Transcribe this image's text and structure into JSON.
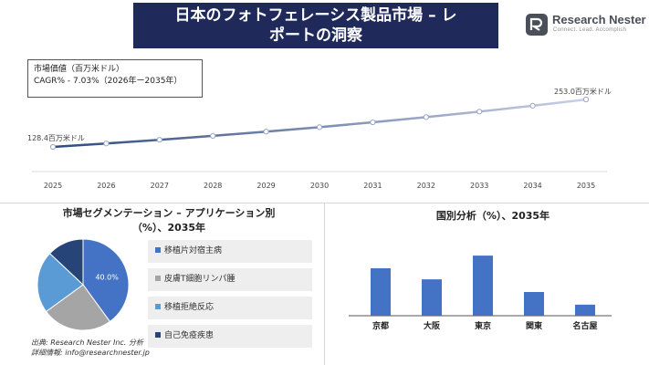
{
  "header": {
    "title_line1": "日本のフォトフェレーシス製品市場 – レ",
    "title_line2": "ポートの洞察"
  },
  "logo": {
    "name": "Research Nester",
    "tagline": "Connect. Lead. Accomplish"
  },
  "market_box": {
    "label": "市場価値（百万米ドル）",
    "cagr": "CAGR% - 7.03%（2026年ー2035年）"
  },
  "segmentation": {
    "title_line1": "市場セグメンテーション – アプリケーション別",
    "title_line2": "（%）、2035年"
  },
  "country": {
    "title": "国別分析（%）、2035年"
  },
  "source": {
    "line1": "出典: Research Nester Inc. 分析",
    "line2": "詳細情報: info@researchnester.jp"
  },
  "chart_data": [
    {
      "type": "line",
      "x": [
        "2025",
        "2026",
        "2027",
        "2028",
        "2029",
        "2030",
        "2031",
        "2032",
        "2033",
        "2034",
        "2035"
      ],
      "values": [
        128.4,
        137.4,
        147.1,
        157.4,
        168.5,
        180.3,
        193.0,
        206.6,
        221.1,
        236.6,
        253.0
      ],
      "start_label": "128.4百万米ドル",
      "end_label": "253.0百万米ドル",
      "colors": [
        "#2e4a7e",
        "#c9cfe6"
      ]
    },
    {
      "type": "pie",
      "categories": [
        "移植片対宿主病",
        "皮膚T細胞リンパ腫",
        "移植拒絶反応",
        "自己免疫疾患"
      ],
      "values": [
        40.0,
        25.0,
        22.0,
        13.0
      ],
      "data_labels": [
        "40.0%",
        "",
        "",
        ""
      ],
      "colors": [
        "#4472c4",
        "#a5a5a5",
        "#5b9bd5",
        "#264478"
      ]
    },
    {
      "type": "bar",
      "categories": [
        "京都",
        "大阪",
        "東京",
        "関東",
        "名古屋"
      ],
      "values": [
        30,
        23,
        38,
        15,
        7
      ],
      "ylim": [
        0,
        45
      ],
      "color": "#4472c4"
    }
  ]
}
